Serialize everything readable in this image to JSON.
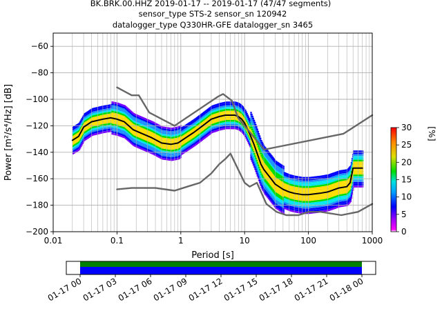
{
  "title_lines": [
    "BK.BRK.00.HHZ   2019-01-17 -- 2019-01-17  (47/47 segments)",
    "sensor_type STS-2 sensor_sn 120942",
    "datalogger_type Q330HR-GFE datalogger_sn 3465"
  ],
  "chart_data": [
    {
      "type": "heatmap",
      "title": "BK.BRK.00.HHZ   2019-01-17 -- 2019-01-17  (47/47 segments)",
      "xlabel": "Period [s]",
      "ylabel": "Power [m²/s⁴/Hz] [dB]",
      "x_scale": "log",
      "xlim": [
        0.01,
        1000
      ],
      "ylim": [
        -200,
        -50
      ],
      "x_ticks": [
        0.01,
        0.1,
        1,
        10,
        100,
        1000
      ],
      "x_tick_labels": [
        "0.01",
        "0.1",
        "1",
        "10",
        "100",
        "1000"
      ],
      "y_ticks": [
        -200,
        -180,
        -160,
        -140,
        -120,
        -100,
        -80,
        -60
      ],
      "y_tick_labels": [
        "−200",
        "−180",
        "−160",
        "−140",
        "−120",
        "−100",
        "−80",
        "−60"
      ],
      "grid": true,
      "series": [
        {
          "name": "",
          "color": "#000000",
          "x": [
            0.02,
            0.025,
            0.03,
            0.04,
            0.06,
            0.08,
            0.1,
            0.13,
            0.18,
            0.25,
            0.35,
            0.5,
            0.7,
            0.9,
            1.2,
            1.6,
            2.2,
            3,
            4,
            5,
            6,
            7,
            8,
            9,
            10,
            12,
            14,
            16,
            18,
            20,
            25,
            30,
            40,
            50,
            60,
            80,
            100,
            150,
            200,
            300,
            400,
            450,
            500,
            700
          ],
          "y": [
            -131,
            -128,
            -121,
            -117,
            -115,
            -114,
            -115,
            -117,
            -123,
            -126,
            -129,
            -133,
            -134,
            -133,
            -129,
            -125,
            -120,
            -115,
            -113,
            -112,
            -112,
            -112,
            -113,
            -115,
            -118,
            -126,
            -134,
            -142,
            -149,
            -153,
            -159,
            -164,
            -168,
            -170,
            -171,
            -172,
            -172,
            -171,
            -170,
            -167,
            -166,
            -163,
            -152,
            -152
          ]
        },
        {
          "name": "",
          "color": "#666666",
          "x": [
            0.1,
            0.17,
            0.22,
            0.32,
            0.8,
            3.8,
            4.6,
            6.3,
            7.9,
            15.4,
            20,
            354.8,
            1000
          ],
          "y": [
            -91,
            -97,
            -97,
            -110,
            -120,
            -98,
            -96,
            -101,
            -114,
            -131,
            -138,
            -126,
            -112
          ]
        },
        {
          "name": "",
          "color": "#666666",
          "x": [
            0.1,
            0.17,
            0.4,
            0.8,
            1.26,
            2,
            3,
            4,
            5,
            6,
            10,
            12,
            15.6,
            21.9,
            31.6,
            45,
            70,
            101,
            154,
            328,
            600,
            1000
          ],
          "y": [
            -168,
            -167,
            -167,
            -169,
            -166,
            -163,
            -156,
            -149,
            -145,
            -141,
            -163,
            -166,
            -163,
            -179,
            -185,
            -187.5,
            -187.5,
            -185,
            -185,
            -187.5,
            -185,
            -179
          ]
        }
      ],
      "colorbar": {
        "label": "[%]",
        "range": [
          0,
          30
        ],
        "ticks": [
          "0",
          "5",
          "10",
          "15",
          "20",
          "25",
          "30"
        ]
      }
    },
    {
      "type": "bar",
      "title": "",
      "xlabel": "",
      "ylabel": "",
      "x_tick_labels": [
        "01-17 00",
        "01-17 03",
        "01-17 06",
        "01-17 09",
        "01-17 12",
        "01-17 15",
        "01-17 18",
        "01-17 21",
        "01-18 00"
      ],
      "coverage_rows": [
        {
          "color": "#008000",
          "start_hours": 0,
          "end_hours": 24
        },
        {
          "color": "#0000ff",
          "start_hours": 0,
          "end_hours": 24
        }
      ]
    }
  ]
}
